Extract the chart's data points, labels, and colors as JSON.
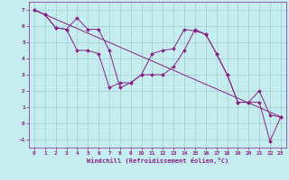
{
  "xlabel": "Windchill (Refroidissement éolien,°C)",
  "background_color": "#c5ecee",
  "line_color": "#882288",
  "grid_color": "#a0cccc",
  "xlim": [
    -0.5,
    23.5
  ],
  "ylim": [
    -1.5,
    7.5
  ],
  "xticks": [
    0,
    1,
    2,
    3,
    4,
    5,
    6,
    7,
    8,
    9,
    10,
    11,
    12,
    13,
    14,
    15,
    16,
    17,
    18,
    19,
    20,
    21,
    22,
    23
  ],
  "yticks": [
    -1,
    0,
    1,
    2,
    3,
    4,
    5,
    6,
    7
  ],
  "series": [
    {
      "x": [
        0,
        1,
        2,
        3,
        4,
        5,
        6,
        7,
        8,
        9,
        10,
        11,
        12,
        13,
        14,
        15,
        16,
        17,
        18,
        19,
        20,
        21,
        22,
        23
      ],
      "y": [
        7,
        6.7,
        5.9,
        5.8,
        6.5,
        5.8,
        5.8,
        4.5,
        2.2,
        2.5,
        3.0,
        4.3,
        4.5,
        4.6,
        5.8,
        5.7,
        5.5,
        4.3,
        3.0,
        1.3,
        1.3,
        2.0,
        0.5,
        0.4
      ]
    },
    {
      "x": [
        0,
        1,
        2,
        3,
        4,
        5,
        6,
        7,
        8,
        9,
        10,
        11,
        12,
        13,
        14,
        15,
        16,
        17,
        18,
        19,
        20,
        21,
        22,
        23
      ],
      "y": [
        7,
        6.7,
        5.9,
        5.8,
        4.5,
        4.5,
        4.3,
        2.2,
        2.5,
        2.5,
        3.0,
        3.0,
        3.0,
        3.5,
        4.5,
        5.8,
        5.5,
        4.3,
        3.0,
        1.3,
        1.3,
        1.3,
        -1.1,
        0.4
      ]
    },
    {
      "x": [
        0,
        23
      ],
      "y": [
        7,
        0.4
      ]
    }
  ]
}
